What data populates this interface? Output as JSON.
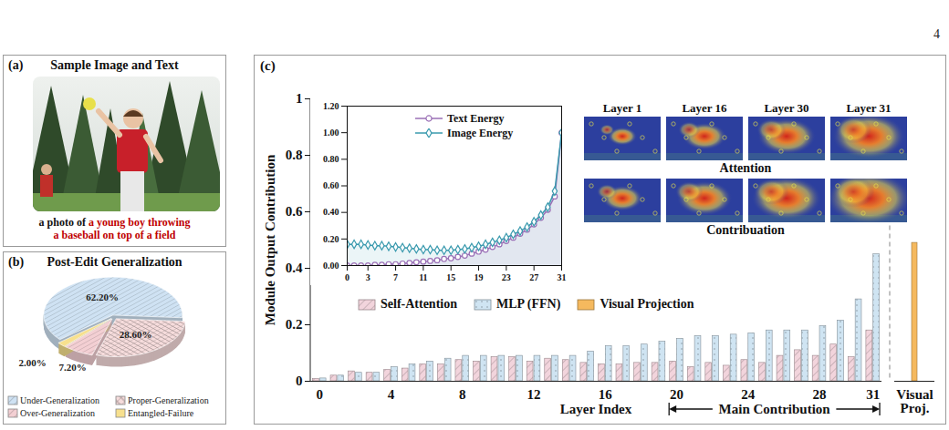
{
  "page_number": "4",
  "panel_a": {
    "panel": "(a)",
    "title": "Sample Image and Text",
    "caption": "a photo of",
    "caption_highlight": "a young boy throwing a baseball on top of a field"
  },
  "heatmaps": {
    "columns": [
      "Layer 1",
      "Layer 16",
      "Layer 30",
      "Layer 31"
    ],
    "rows": [
      "Attention",
      "Contribuation"
    ]
  },
  "chart_data": [
    {
      "type": "pie",
      "panel": "(b)",
      "title": "Post-Edit Generalization",
      "categories": [
        "Under-Generalization",
        "Proper-Generalization",
        "Over-Generalization",
        "Entangled-Failure"
      ],
      "values": [
        62.2,
        28.6,
        7.2,
        2.0
      ],
      "value_labels": [
        "62.20%",
        "28.60%",
        "7.20%",
        "2.00%"
      ],
      "colors": [
        "#cfe2f3",
        "#f6dcdc",
        "#f3cfd3",
        "#f7e08e"
      ],
      "data_labels": true,
      "legend": "bottom"
    },
    {
      "type": "bar",
      "panel": "(c)",
      "xlabel": "Layer Index",
      "ylabel": "Module Output Contribution",
      "categories": [
        "0",
        null,
        null,
        null,
        "4",
        null,
        null,
        null,
        "8",
        null,
        null,
        null,
        "12",
        null,
        null,
        null,
        "16",
        null,
        null,
        null,
        "20",
        null,
        null,
        null,
        "24",
        null,
        null,
        null,
        "28",
        null,
        null,
        "31",
        "Visual Proj."
      ],
      "series": [
        {
          "name": "Self-Attention",
          "color": "#f2d4dc",
          "values": [
            0.008,
            0.02,
            0.035,
            0.03,
            0.04,
            0.045,
            0.06,
            0.06,
            0.075,
            0.07,
            0.085,
            0.085,
            0.07,
            0.08,
            0.075,
            0.065,
            0.06,
            0.06,
            0.065,
            0.065,
            0.07,
            0.05,
            0.065,
            0.055,
            0.075,
            0.065,
            0.09,
            0.11,
            0.09,
            0.13,
            0.085,
            0.18,
            null
          ]
        },
        {
          "name": "MLP (FFN)",
          "color": "#cfe4f2",
          "values": [
            0.01,
            0.02,
            0.03,
            0.03,
            0.05,
            0.06,
            0.07,
            0.08,
            0.09,
            0.09,
            0.09,
            0.09,
            0.09,
            0.09,
            0.09,
            0.105,
            0.125,
            0.125,
            0.13,
            0.14,
            0.15,
            0.16,
            0.16,
            0.165,
            0.17,
            0.18,
            0.18,
            0.18,
            0.195,
            0.215,
            0.29,
            0.45,
            null
          ]
        },
        {
          "name": "Visual Projection",
          "color": "#f5b95e",
          "values": [
            null,
            null,
            null,
            null,
            null,
            null,
            null,
            null,
            null,
            null,
            null,
            null,
            null,
            null,
            null,
            null,
            null,
            null,
            null,
            null,
            null,
            null,
            null,
            null,
            null,
            null,
            null,
            null,
            null,
            null,
            null,
            null,
            0.49
          ]
        }
      ],
      "ylim": [
        0,
        1
      ],
      "yticks": [
        0,
        0.2,
        0.4,
        0.6,
        0.8,
        1
      ],
      "legend": "left",
      "annotations": [
        {
          "text": "Main Contribution",
          "from": "20",
          "to": "31"
        }
      ]
    },
    {
      "type": "line",
      "x": [
        0,
        1,
        2,
        3,
        4,
        5,
        6,
        7,
        8,
        9,
        10,
        11,
        12,
        13,
        14,
        15,
        16,
        17,
        18,
        19,
        20,
        21,
        22,
        23,
        24,
        25,
        26,
        27,
        28,
        29,
        30,
        31
      ],
      "series": [
        {
          "name": "Text Energy",
          "color": "#9a6fb6",
          "marker": "circle",
          "values": [
            0,
            0,
            0,
            0,
            0.005,
            0.005,
            0.01,
            0.01,
            0.015,
            0.02,
            0.025,
            0.03,
            0.035,
            0.04,
            0.05,
            0.055,
            0.065,
            0.075,
            0.09,
            0.105,
            0.12,
            0.14,
            0.16,
            0.185,
            0.21,
            0.24,
            0.27,
            0.31,
            0.36,
            0.42,
            0.52,
            1.0
          ]
        },
        {
          "name": "Image Energy",
          "color": "#3a9aae",
          "marker": "diamond",
          "values": [
            0.16,
            0.16,
            0.16,
            0.155,
            0.15,
            0.15,
            0.145,
            0.14,
            0.135,
            0.13,
            0.125,
            0.12,
            0.12,
            0.115,
            0.115,
            0.115,
            0.12,
            0.125,
            0.135,
            0.145,
            0.16,
            0.175,
            0.19,
            0.21,
            0.235,
            0.26,
            0.29,
            0.33,
            0.38,
            0.44,
            0.56,
            1.0
          ]
        }
      ],
      "xlim": [
        0,
        31
      ],
      "xticks": [
        0,
        3,
        7,
        11,
        15,
        19,
        23,
        27,
        31
      ],
      "ylim": [
        0,
        1.2
      ],
      "yticks": [
        {
          "value": 0,
          "label": "0.00"
        },
        {
          "value": 0.2,
          "label": "0.20"
        },
        {
          "value": 0.4,
          "label": "0.40"
        },
        {
          "value": 0.6,
          "label": "0.60"
        },
        {
          "value": 0.8,
          "label": "0.80"
        },
        {
          "value": 1,
          "label": "1.00"
        },
        {
          "value": 1.2,
          "label": "1.20"
        }
      ],
      "legend": "top"
    }
  ]
}
